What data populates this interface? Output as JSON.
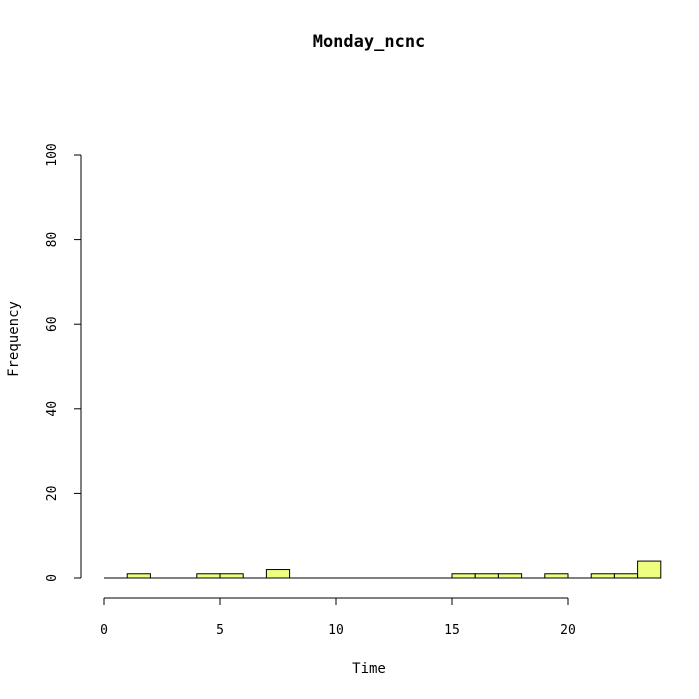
{
  "chart_data": {
    "type": "bar",
    "title": "Monday_ncnc",
    "xlabel": "Time",
    "ylabel": "Frequency",
    "xlim": [
      0,
      24
    ],
    "ylim": [
      0,
      100
    ],
    "x_ticks": [
      0,
      5,
      10,
      15,
      20
    ],
    "y_ticks": [
      0,
      20,
      40,
      60,
      80,
      100
    ],
    "bin_width": 1,
    "bins_start": 0,
    "values": [
      0,
      1,
      0,
      0,
      1,
      1,
      0,
      2,
      0,
      0,
      0,
      0,
      0,
      0,
      0,
      1,
      1,
      1,
      0,
      1,
      0,
      1,
      1,
      4
    ],
    "bar_color": "#eeff80",
    "grid": false
  }
}
